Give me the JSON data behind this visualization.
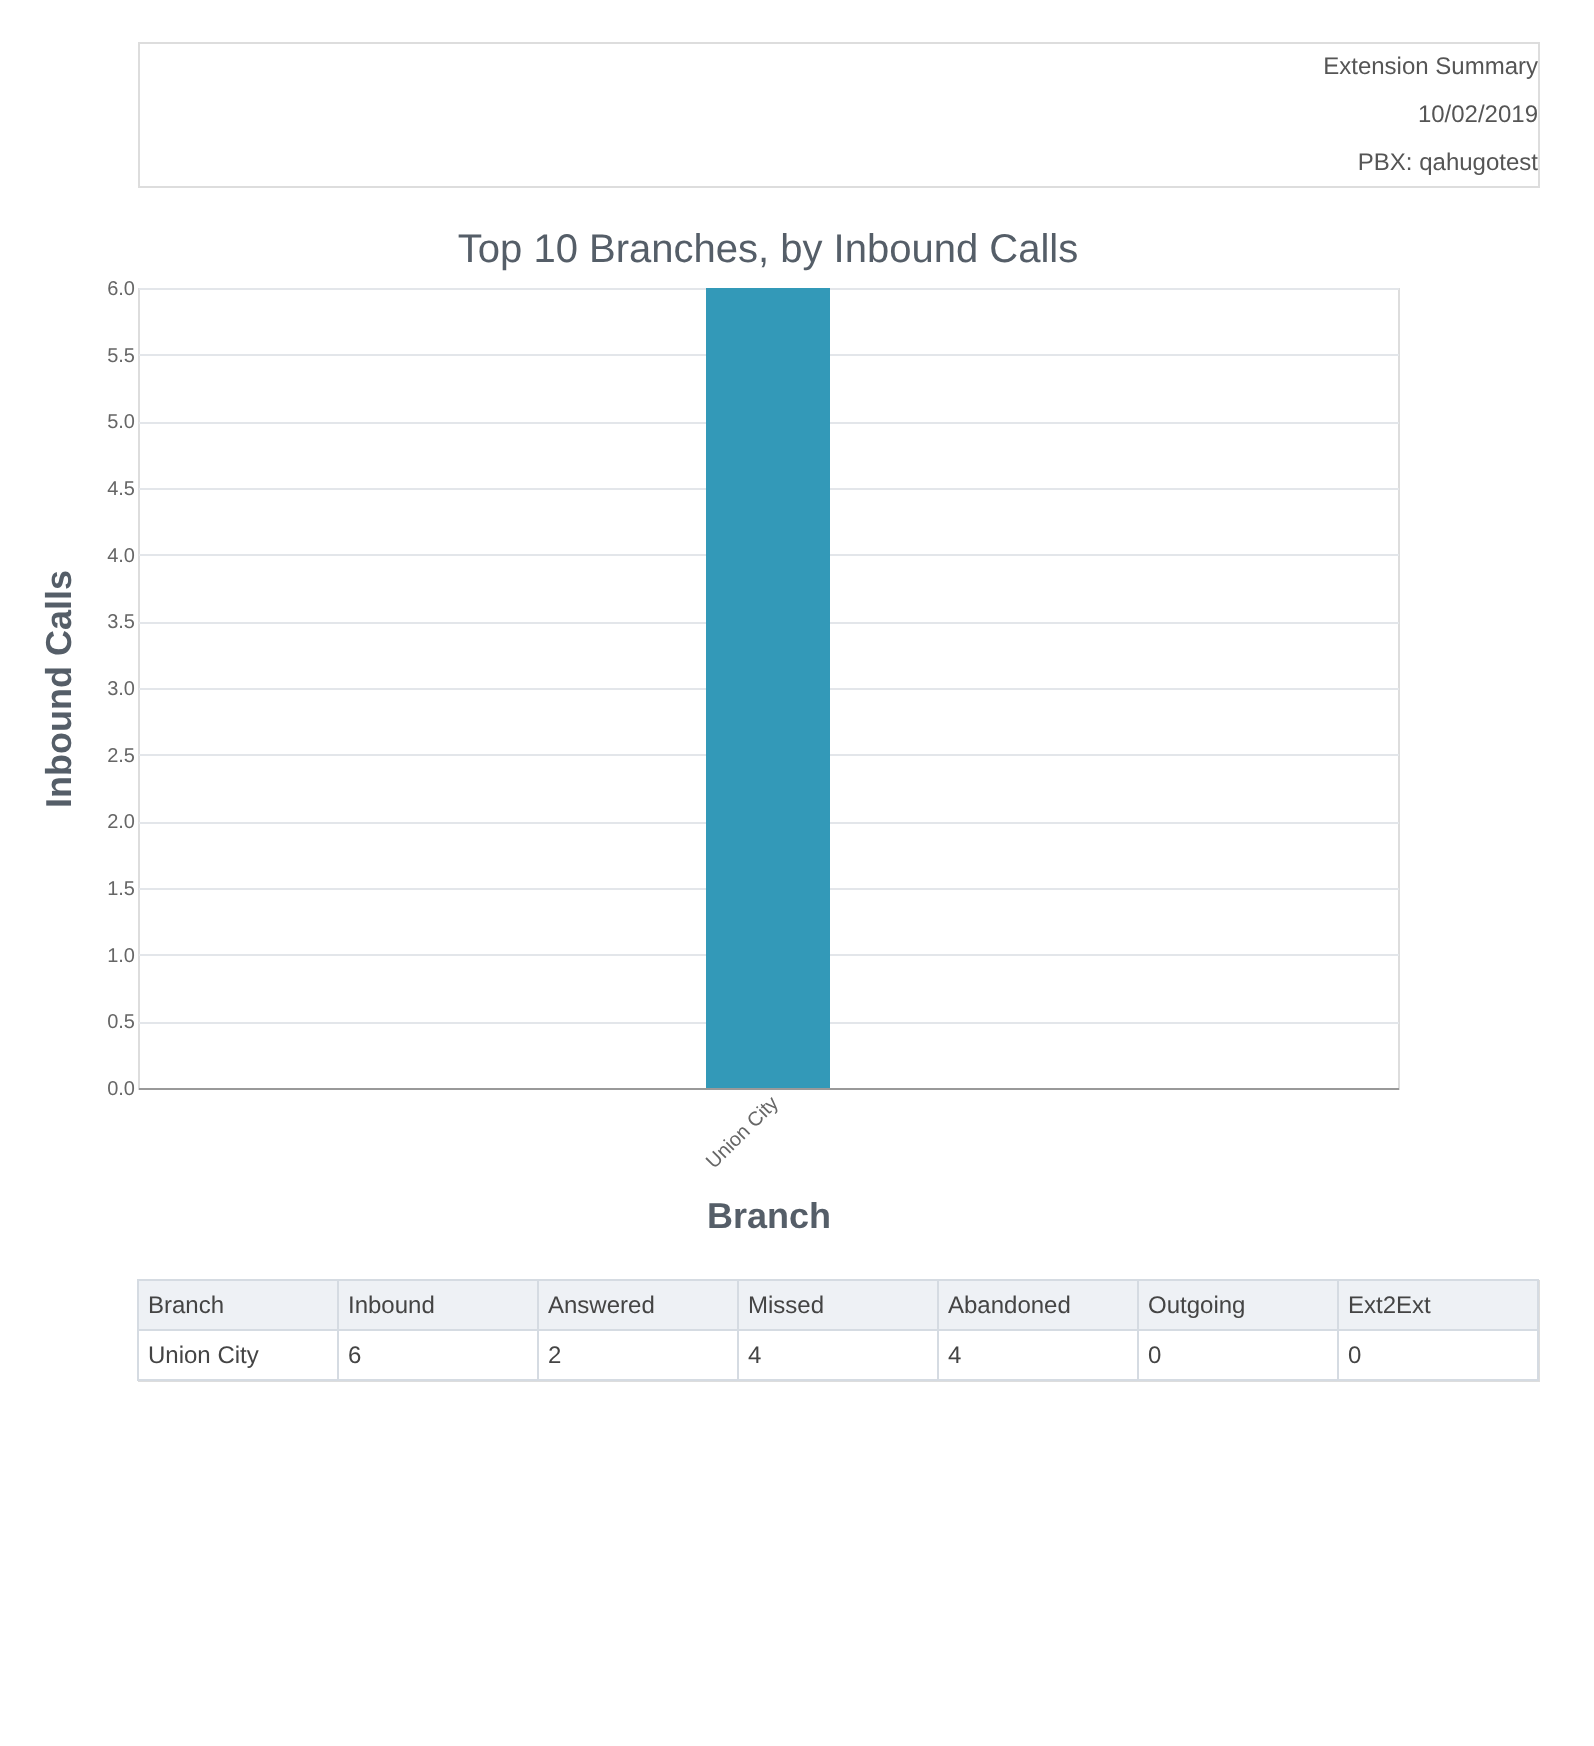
{
  "chart_data": [
    {
      "type": "other",
      "annotations": [
        "Extension Summary",
        "10/02/2019",
        "PBX: qahugotest"
      ]
    },
    {
      "type": "bar",
      "title": "Top 10 Branches, by Inbound Calls",
      "xlabel": "Branch",
      "ylabel": "Inbound Calls",
      "categories": [
        "Union City"
      ],
      "values": [
        6
      ],
      "color": "#3399b8",
      "ylim": [
        0,
        6
      ],
      "yticks": [
        {
          "value": 0,
          "label": "0.0"
        },
        {
          "value": 0.5,
          "label": "0.5"
        },
        {
          "value": 1,
          "label": "1.0"
        },
        {
          "value": 1.5,
          "label": "1.5"
        },
        {
          "value": 2,
          "label": "2.0"
        },
        {
          "value": 2.5,
          "label": "2.5"
        },
        {
          "value": 3,
          "label": "3.0"
        },
        {
          "value": 3.5,
          "label": "3.5"
        },
        {
          "value": 4,
          "label": "4.0"
        },
        {
          "value": 4.5,
          "label": "4.5"
        },
        {
          "value": 5,
          "label": "5.0"
        },
        {
          "value": 5.5,
          "label": "5.5"
        },
        {
          "value": 6,
          "label": "6.0"
        }
      ],
      "grid": "y"
    },
    {
      "type": "other",
      "categories": [
        "Branch",
        "Inbound",
        "Answered",
        "Missed",
        "Abandoned",
        "Outgoing",
        "Ext2Ext"
      ],
      "annotations": [
        "Union City",
        "6",
        "2",
        "4",
        "4",
        "0",
        "0"
      ]
    }
  ]
}
